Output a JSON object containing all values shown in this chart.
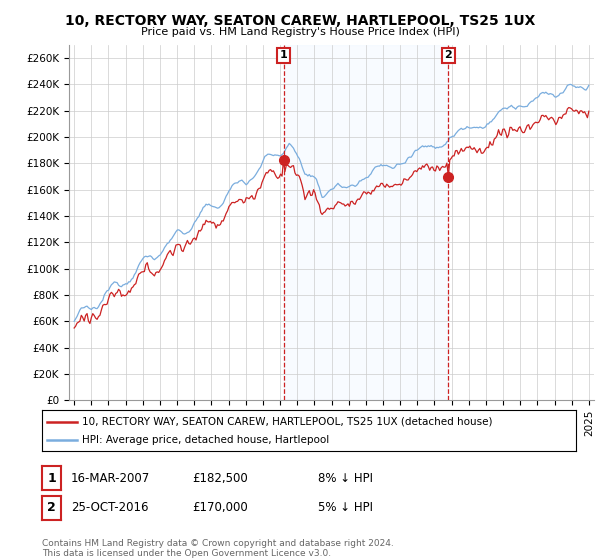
{
  "title": "10, RECTORY WAY, SEATON CAREW, HARTLEPOOL, TS25 1UX",
  "subtitle": "Price paid vs. HM Land Registry's House Price Index (HPI)",
  "ylabel_ticks": [
    "£0",
    "£20K",
    "£40K",
    "£60K",
    "£80K",
    "£100K",
    "£120K",
    "£140K",
    "£160K",
    "£180K",
    "£200K",
    "£220K",
    "£240K",
    "£260K"
  ],
  "ytick_values": [
    0,
    20000,
    40000,
    60000,
    80000,
    100000,
    120000,
    140000,
    160000,
    180000,
    200000,
    220000,
    240000,
    260000
  ],
  "ylim": [
    0,
    270000
  ],
  "xlim_start": 1994.7,
  "xlim_end": 2025.3,
  "xticks": [
    1995,
    1996,
    1997,
    1998,
    1999,
    2000,
    2001,
    2002,
    2003,
    2004,
    2005,
    2006,
    2007,
    2008,
    2009,
    2010,
    2011,
    2012,
    2013,
    2014,
    2015,
    2016,
    2017,
    2018,
    2019,
    2020,
    2021,
    2022,
    2023,
    2024,
    2025
  ],
  "hpi_color": "#7aadde",
  "price_color": "#cc2222",
  "shade_color": "#ddeeff",
  "marker1_x": 2007.21,
  "marker1_y": 182500,
  "marker2_x": 2016.81,
  "marker2_y": 170000,
  "legend_line1": "10, RECTORY WAY, SEATON CAREW, HARTLEPOOL, TS25 1UX (detached house)",
  "legend_line2": "HPI: Average price, detached house, Hartlepool",
  "marker1_date": "16-MAR-2007",
  "marker1_price": "£182,500",
  "marker1_hpi": "8% ↓ HPI",
  "marker2_date": "25-OCT-2016",
  "marker2_price": "£170,000",
  "marker2_hpi": "5% ↓ HPI",
  "footer": "Contains HM Land Registry data © Crown copyright and database right 2024.\nThis data is licensed under the Open Government Licence v3.0.",
  "bg_color": "#ffffff",
  "grid_color": "#cccccc"
}
